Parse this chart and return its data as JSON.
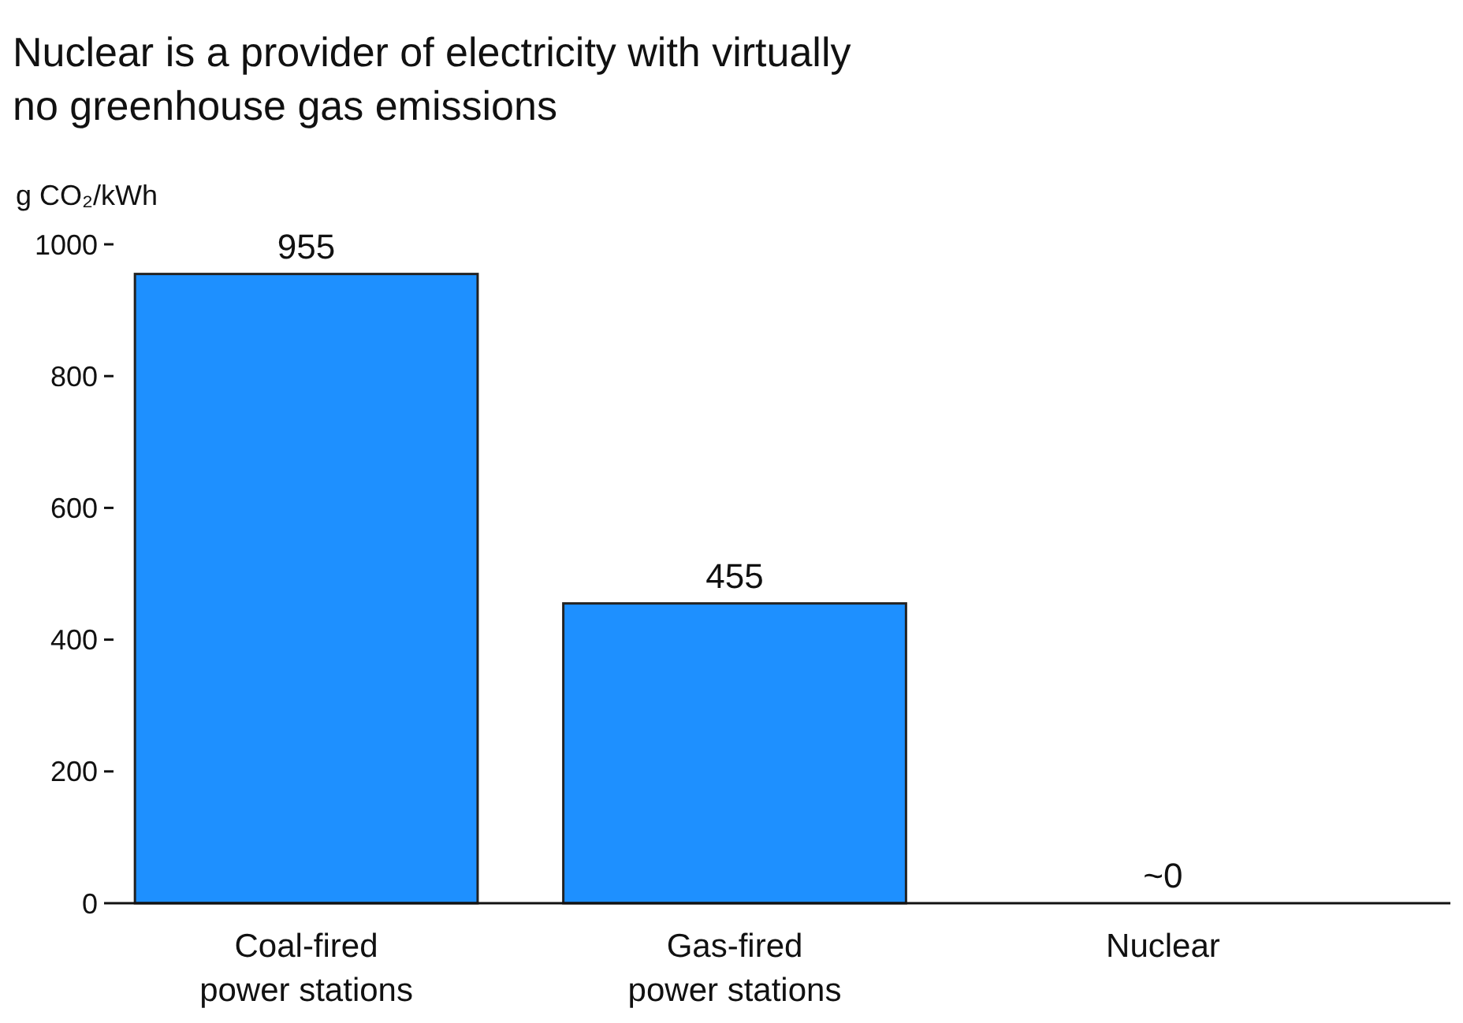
{
  "chart_data": {
    "type": "bar",
    "title": "Nuclear is a provider of electricity with virtually no greenhouse gas emissions",
    "ylabel": "g CO₂/kWh",
    "categories": [
      "Coal-fired power stations",
      "Gas-fired power stations",
      "Nuclear"
    ],
    "values": [
      955,
      455,
      0
    ],
    "value_labels": [
      "955",
      "455",
      "~0"
    ],
    "color": "#1e90ff",
    "ylim": [
      0,
      1000
    ],
    "yticks": [
      0,
      200,
      400,
      600,
      800,
      1000
    ],
    "grid": false
  }
}
